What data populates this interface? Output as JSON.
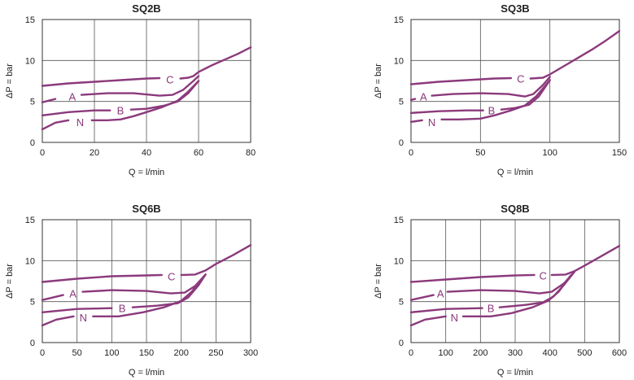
{
  "colors": {
    "curve": "#8b3a7c",
    "grid": "#555555",
    "text": "#222222"
  },
  "chart_data": [
    {
      "type": "line",
      "title": "SQ2B",
      "xlabel": "Q = l/min",
      "ylabel": "ΔP = bar",
      "xlim": [
        0,
        80
      ],
      "ylim": [
        0,
        15
      ],
      "xticks": [
        0,
        20,
        40,
        60,
        80
      ],
      "yticks": [
        0,
        5,
        10,
        15
      ],
      "xticklabels": [
        "0",
        "20",
        "40",
        "60",
        "80"
      ],
      "yticklabels": [
        "0",
        "5",
        "10",
        "15"
      ],
      "series": [
        {
          "name": "C",
          "label_at": [
            49,
            7.7
          ],
          "points": [
            [
              0,
              6.9
            ],
            [
              10,
              7.2
            ],
            [
              20,
              7.4
            ],
            [
              30,
              7.6
            ],
            [
              40,
              7.8
            ],
            [
              45,
              7.85
            ]
          ],
          "points2": [
            [
              53,
              7.8
            ],
            [
              56,
              7.9
            ],
            [
              58,
              8.1
            ],
            [
              60,
              8.6
            ],
            [
              65,
              9.4
            ],
            [
              70,
              10.1
            ],
            [
              75,
              10.8
            ],
            [
              80,
              11.6
            ]
          ]
        },
        {
          "name": "A",
          "label_at": [
            11.5,
            5.6
          ],
          "points": [
            [
              0,
              4.9
            ],
            [
              5,
              5.3
            ]
          ],
          "points2": [
            [
              15,
              5.8
            ],
            [
              25,
              6.0
            ],
            [
              35,
              6.0
            ],
            [
              45,
              5.7
            ],
            [
              50,
              5.8
            ],
            [
              54,
              6.4
            ],
            [
              58,
              7.5
            ],
            [
              60,
              8.1
            ]
          ]
        },
        {
          "name": "B",
          "label_at": [
            30,
            3.9
          ],
          "points": [
            [
              0,
              3.3
            ],
            [
              10,
              3.7
            ],
            [
              20,
              3.9
            ],
            [
              26,
              3.9
            ]
          ],
          "points2": [
            [
              34,
              4.0
            ],
            [
              40,
              4.1
            ],
            [
              47,
              4.5
            ],
            [
              52,
              5.0
            ],
            [
              56,
              6.0
            ],
            [
              60,
              7.5
            ]
          ]
        },
        {
          "name": "N",
          "label_at": [
            14.5,
            2.5
          ],
          "points": [
            [
              0,
              1.6
            ],
            [
              5,
              2.4
            ],
            [
              10,
              2.7
            ]
          ],
          "points2": [
            [
              19,
              2.7
            ],
            [
              25,
              2.7
            ],
            [
              30,
              2.8
            ],
            [
              35,
              3.2
            ],
            [
              40,
              3.7
            ],
            [
              46,
              4.3
            ],
            [
              52,
              5.1
            ],
            [
              56,
              6.2
            ],
            [
              60,
              7.5
            ]
          ]
        }
      ]
    },
    {
      "type": "line",
      "title": "SQ3B",
      "xlabel": "Q = l/min",
      "ylabel": "ΔP = bar",
      "xlim": [
        0,
        150
      ],
      "ylim": [
        0,
        15
      ],
      "xticks": [
        0,
        50,
        100,
        150
      ],
      "yticks": [
        0,
        5,
        10,
        15
      ],
      "xticklabels": [
        "0",
        "50",
        "100",
        "150"
      ],
      "yticklabels": [
        "0",
        "5",
        "10",
        "15"
      ],
      "series": [
        {
          "name": "C",
          "label_at": [
            79,
            7.8
          ],
          "points": [
            [
              0,
              7.1
            ],
            [
              20,
              7.4
            ],
            [
              40,
              7.6
            ],
            [
              60,
              7.8
            ],
            [
              72,
              7.85
            ]
          ],
          "points2": [
            [
              86,
              7.8
            ],
            [
              95,
              7.9
            ],
            [
              100,
              8.3
            ],
            [
              110,
              9.3
            ],
            [
              120,
              10.3
            ],
            [
              130,
              11.3
            ],
            [
              140,
              12.4
            ],
            [
              150,
              13.6
            ]
          ]
        },
        {
          "name": "A",
          "label_at": [
            9,
            5.6
          ],
          "points": [
            [
              0,
              5.2
            ],
            [
              3,
              5.3
            ]
          ],
          "points2": [
            [
              15,
              5.7
            ],
            [
              30,
              5.9
            ],
            [
              50,
              6.0
            ],
            [
              70,
              5.9
            ],
            [
              82,
              5.6
            ],
            [
              88,
              5.9
            ],
            [
              95,
              7.0
            ],
            [
              100,
              8.0
            ]
          ]
        },
        {
          "name": "B",
          "label_at": [
            58,
            3.9
          ],
          "points": [
            [
              0,
              3.6
            ],
            [
              20,
              3.8
            ],
            [
              40,
              3.9
            ],
            [
              52,
              3.9
            ]
          ],
          "points2": [
            [
              65,
              4.0
            ],
            [
              75,
              4.2
            ],
            [
              85,
              4.6
            ],
            [
              92,
              5.6
            ],
            [
              100,
              7.6
            ]
          ]
        },
        {
          "name": "N",
          "label_at": [
            15,
            2.5
          ],
          "points": [
            [
              0,
              2.5
            ],
            [
              8,
              2.7
            ]
          ],
          "points2": [
            [
              22,
              2.8
            ],
            [
              35,
              2.8
            ],
            [
              50,
              2.9
            ],
            [
              60,
              3.3
            ],
            [
              72,
              3.9
            ],
            [
              82,
              4.5
            ],
            [
              90,
              5.6
            ],
            [
              100,
              7.6
            ]
          ]
        }
      ]
    },
    {
      "type": "line",
      "title": "SQ6B",
      "xlabel": "Q = l/min",
      "ylabel": "ΔP = bar",
      "xlim": [
        0,
        300
      ],
      "ylim": [
        0,
        15
      ],
      "xticks": [
        0,
        50,
        100,
        150,
        200,
        250,
        300
      ],
      "yticks": [
        0,
        5,
        10,
        15
      ],
      "xticklabels": [
        "0",
        "50",
        "100",
        "150",
        "200",
        "250",
        "300"
      ],
      "yticklabels": [
        "0",
        "5",
        "10",
        "15"
      ],
      "series": [
        {
          "name": "C",
          "label_at": [
            186,
            8.1
          ],
          "points": [
            [
              0,
              7.4
            ],
            [
              50,
              7.8
            ],
            [
              100,
              8.1
            ],
            [
              150,
              8.2
            ],
            [
              172,
              8.25
            ]
          ],
          "points2": [
            [
              200,
              8.25
            ],
            [
              220,
              8.3
            ],
            [
              235,
              8.8
            ],
            [
              250,
              9.6
            ],
            [
              275,
              10.7
            ],
            [
              300,
              11.9
            ]
          ]
        },
        {
          "name": "A",
          "label_at": [
            44,
            6.0
          ],
          "points": [
            [
              0,
              5.2
            ],
            [
              30,
              5.8
            ]
          ],
          "points2": [
            [
              58,
              6.2
            ],
            [
              100,
              6.4
            ],
            [
              150,
              6.3
            ],
            [
              185,
              6.0
            ],
            [
              205,
              6.1
            ],
            [
              220,
              6.9
            ],
            [
              235,
              8.3
            ]
          ]
        },
        {
          "name": "B",
          "label_at": [
            115,
            4.2
          ],
          "points": [
            [
              0,
              3.7
            ],
            [
              50,
              4.1
            ],
            [
              100,
              4.2
            ]
          ],
          "points2": [
            [
              130,
              4.3
            ],
            [
              165,
              4.5
            ],
            [
              195,
              4.8
            ],
            [
              210,
              5.5
            ],
            [
              225,
              7.0
            ],
            [
              235,
              8.3
            ]
          ]
        },
        {
          "name": "N",
          "label_at": [
            59,
            3.1
          ],
          "points": [
            [
              0,
              2.1
            ],
            [
              20,
              2.8
            ],
            [
              45,
              3.2
            ]
          ],
          "points2": [
            [
              73,
              3.2
            ],
            [
              110,
              3.2
            ],
            [
              145,
              3.7
            ],
            [
              175,
              4.3
            ],
            [
              200,
              5.1
            ],
            [
              215,
              6.2
            ],
            [
              235,
              8.3
            ]
          ]
        }
      ]
    },
    {
      "type": "line",
      "title": "SQ8B",
      "xlabel": "Q = l/min",
      "ylabel": "ΔP = bar",
      "xlim": [
        0,
        600
      ],
      "ylim": [
        0,
        15
      ],
      "xticks": [
        0,
        100,
        200,
        300,
        400,
        500,
        600
      ],
      "yticks": [
        0,
        5,
        10,
        15
      ],
      "xticklabels": [
        "0",
        "100",
        "200",
        "300",
        "400",
        "500",
        "600"
      ],
      "yticklabels": [
        "0",
        "5",
        "10",
        "15"
      ],
      "series": [
        {
          "name": "C",
          "label_at": [
            380,
            8.2
          ],
          "points": [
            [
              0,
              7.4
            ],
            [
              100,
              7.7
            ],
            [
              200,
              8.0
            ],
            [
              300,
              8.2
            ],
            [
              355,
              8.25
            ]
          ],
          "points2": [
            [
              405,
              8.25
            ],
            [
              445,
              8.3
            ],
            [
              470,
              8.7
            ],
            [
              500,
              9.4
            ],
            [
              550,
              10.6
            ],
            [
              600,
              11.8
            ]
          ]
        },
        {
          "name": "A",
          "label_at": [
            85,
            6.0
          ],
          "points": [
            [
              0,
              5.2
            ],
            [
              65,
              5.8
            ]
          ],
          "points2": [
            [
              105,
              6.2
            ],
            [
              200,
              6.4
            ],
            [
              300,
              6.3
            ],
            [
              370,
              6.0
            ],
            [
              405,
              6.2
            ],
            [
              440,
              7.2
            ],
            [
              470,
              8.6
            ]
          ]
        },
        {
          "name": "B",
          "label_at": [
            230,
            4.2
          ],
          "points": [
            [
              0,
              3.7
            ],
            [
              100,
              4.1
            ],
            [
              205,
              4.2
            ]
          ],
          "points2": [
            [
              255,
              4.3
            ],
            [
              330,
              4.6
            ],
            [
              380,
              4.9
            ],
            [
              410,
              5.6
            ],
            [
              440,
              7.0
            ],
            [
              470,
              8.6
            ]
          ]
        },
        {
          "name": "N",
          "label_at": [
            125,
            3.1
          ],
          "points": [
            [
              0,
              2.1
            ],
            [
              40,
              2.8
            ],
            [
              100,
              3.2
            ]
          ],
          "points2": [
            [
              150,
              3.2
            ],
            [
              230,
              3.2
            ],
            [
              290,
              3.6
            ],
            [
              350,
              4.3
            ],
            [
              395,
              5.1
            ],
            [
              425,
              6.2
            ],
            [
              460,
              8.2
            ]
          ]
        }
      ]
    }
  ]
}
